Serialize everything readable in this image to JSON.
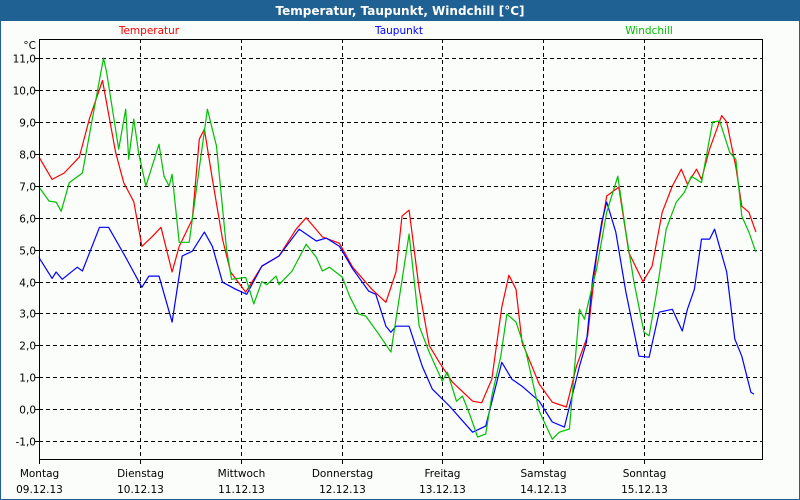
{
  "window": {
    "title": "Temperatur, Taupunkt, Windchill [°C]"
  },
  "chart_data": {
    "type": "line",
    "title": "Temperatur, Taupunkt, Windchill [°C]",
    "ylabel": "°C",
    "xlabel": "",
    "x_unit": "days since Montag 09.12.13 00:00",
    "xlim": [
      0,
      7.17
    ],
    "ylim": [
      -1.56,
      11.6
    ],
    "grid": true,
    "legend_placement": "top",
    "yticks": [
      -1,
      0,
      1,
      2,
      3,
      4,
      5,
      6,
      7,
      8,
      9,
      10,
      11
    ],
    "ytick_labels": [
      "-1,0",
      "0,0",
      "1,0",
      "2,0",
      "3,0",
      "4,0",
      "5,0",
      "6,0",
      "7,0",
      "8,0",
      "9,0",
      "10,0",
      "11,0"
    ],
    "xticks": [
      {
        "day": "Montag",
        "date": "09.12.13",
        "x": 0
      },
      {
        "day": "Dienstag",
        "date": "10.12.13",
        "x": 1
      },
      {
        "day": "Mittwoch",
        "date": "11.12.13",
        "x": 2
      },
      {
        "day": "Donnerstag",
        "date": "12.12.13",
        "x": 3
      },
      {
        "day": "Freitag",
        "date": "13.12.13",
        "x": 4
      },
      {
        "day": "Samstag",
        "date": "14.12.13",
        "x": 5
      },
      {
        "day": "Sonntag",
        "date": "15.12.13",
        "x": 6
      }
    ],
    "series": [
      {
        "name": "Temperatur",
        "color": "#ff0000",
        "points": [
          [
            0,
            7.9
          ],
          [
            0.13,
            7.2
          ],
          [
            0.25,
            7.4
          ],
          [
            0.4,
            7.9
          ],
          [
            0.5,
            9.1
          ],
          [
            0.63,
            10.3
          ],
          [
            0.76,
            8.05
          ],
          [
            0.84,
            7.1
          ],
          [
            0.94,
            6.5
          ],
          [
            1.02,
            5.1
          ],
          [
            1.12,
            5.4
          ],
          [
            1.21,
            5.7
          ],
          [
            1.32,
            4.3
          ],
          [
            1.39,
            5.1
          ],
          [
            1.52,
            5.95
          ],
          [
            1.59,
            8.46
          ],
          [
            1.64,
            8.77
          ],
          [
            1.72,
            7.2
          ],
          [
            1.82,
            5.33
          ],
          [
            1.9,
            4.3
          ],
          [
            2.05,
            3.67
          ],
          [
            2.21,
            4.48
          ],
          [
            2.38,
            4.8
          ],
          [
            2.55,
            5.64
          ],
          [
            2.65,
            6.0
          ],
          [
            2.81,
            5.4
          ],
          [
            2.98,
            5.2
          ],
          [
            3.11,
            4.45
          ],
          [
            3.3,
            3.76
          ],
          [
            3.44,
            3.35
          ],
          [
            3.54,
            4.3
          ],
          [
            3.6,
            6.05
          ],
          [
            3.67,
            6.24
          ],
          [
            3.77,
            3.76
          ],
          [
            3.87,
            2.0
          ],
          [
            3.97,
            1.47
          ],
          [
            4.1,
            0.85
          ],
          [
            4.3,
            0.25
          ],
          [
            4.39,
            0.2
          ],
          [
            4.49,
            0.94
          ],
          [
            4.59,
            3.2
          ],
          [
            4.66,
            4.2
          ],
          [
            4.73,
            3.76
          ],
          [
            4.79,
            2.1
          ],
          [
            4.96,
            0.79
          ],
          [
            5.09,
            0.22
          ],
          [
            5.23,
            0.07
          ],
          [
            5.33,
            1.35
          ],
          [
            5.44,
            2.3
          ],
          [
            5.53,
            4.8
          ],
          [
            5.63,
            6.68
          ],
          [
            5.75,
            6.96
          ],
          [
            5.85,
            4.9
          ],
          [
            5.99,
            4.0
          ],
          [
            6.08,
            4.48
          ],
          [
            6.18,
            6.17
          ],
          [
            6.28,
            6.99
          ],
          [
            6.37,
            7.52
          ],
          [
            6.43,
            7.05
          ],
          [
            6.52,
            7.52
          ],
          [
            6.57,
            7.2
          ],
          [
            6.65,
            8.15
          ],
          [
            6.77,
            9.2
          ],
          [
            6.82,
            9.0
          ],
          [
            6.91,
            7.6
          ],
          [
            6.97,
            6.36
          ],
          [
            7.04,
            6.17
          ],
          [
            7.11,
            5.55
          ]
        ]
      },
      {
        "name": "Taupunkt",
        "color": "#0000ff",
        "points": [
          [
            0,
            4.75
          ],
          [
            0.13,
            4.1
          ],
          [
            0.17,
            4.3
          ],
          [
            0.23,
            4.07
          ],
          [
            0.38,
            4.45
          ],
          [
            0.43,
            4.33
          ],
          [
            0.6,
            5.7
          ],
          [
            0.69,
            5.7
          ],
          [
            0.86,
            4.76
          ],
          [
            1.02,
            3.82
          ],
          [
            1.09,
            4.17
          ],
          [
            1.19,
            4.17
          ],
          [
            1.32,
            2.73
          ],
          [
            1.42,
            4.8
          ],
          [
            1.52,
            4.95
          ],
          [
            1.64,
            5.55
          ],
          [
            1.72,
            5.1
          ],
          [
            1.82,
            3.98
          ],
          [
            1.95,
            3.76
          ],
          [
            2.06,
            3.6
          ],
          [
            2.21,
            4.48
          ],
          [
            2.38,
            4.8
          ],
          [
            2.58,
            5.64
          ],
          [
            2.75,
            5.27
          ],
          [
            2.85,
            5.36
          ],
          [
            2.98,
            5.1
          ],
          [
            3.11,
            4.4
          ],
          [
            3.27,
            3.7
          ],
          [
            3.34,
            3.6
          ],
          [
            3.44,
            2.6
          ],
          [
            3.49,
            2.41
          ],
          [
            3.54,
            2.6
          ],
          [
            3.67,
            2.6
          ],
          [
            3.8,
            1.35
          ],
          [
            3.9,
            0.63
          ],
          [
            4.07,
            0.1
          ],
          [
            4.3,
            -0.72
          ],
          [
            4.43,
            -0.53
          ],
          [
            4.59,
            1.47
          ],
          [
            4.69,
            0.94
          ],
          [
            4.79,
            0.72
          ],
          [
            4.96,
            0.25
          ],
          [
            5.09,
            -0.4
          ],
          [
            5.21,
            -0.56
          ],
          [
            5.36,
            1.35
          ],
          [
            5.43,
            2.1
          ],
          [
            5.49,
            4.07
          ],
          [
            5.58,
            5.86
          ],
          [
            5.63,
            6.49
          ],
          [
            5.72,
            5.55
          ],
          [
            5.82,
            3.67
          ],
          [
            5.95,
            1.66
          ],
          [
            6.05,
            1.63
          ],
          [
            6.15,
            3.04
          ],
          [
            6.28,
            3.13
          ],
          [
            6.38,
            2.45
          ],
          [
            6.43,
            3.13
          ],
          [
            6.5,
            3.76
          ],
          [
            6.57,
            5.33
          ],
          [
            6.65,
            5.33
          ],
          [
            6.7,
            5.64
          ],
          [
            6.82,
            4.3
          ],
          [
            6.9,
            2.2
          ],
          [
            6.97,
            1.66
          ],
          [
            7.06,
            0.53
          ],
          [
            7.09,
            0.47
          ]
        ]
      },
      {
        "name": "Windchill",
        "color": "#00c000",
        "points": [
          [
            0,
            6.96
          ],
          [
            0.1,
            6.52
          ],
          [
            0.17,
            6.49
          ],
          [
            0.22,
            6.2
          ],
          [
            0.3,
            7.1
          ],
          [
            0.43,
            7.4
          ],
          [
            0.64,
            11.0
          ],
          [
            0.67,
            10.56
          ],
          [
            0.79,
            8.15
          ],
          [
            0.86,
            9.4
          ],
          [
            0.89,
            7.83
          ],
          [
            0.94,
            9.09
          ],
          [
            0.99,
            8.0
          ],
          [
            1.06,
            6.99
          ],
          [
            1.19,
            8.3
          ],
          [
            1.24,
            7.3
          ],
          [
            1.29,
            6.99
          ],
          [
            1.32,
            7.36
          ],
          [
            1.39,
            5.23
          ],
          [
            1.49,
            5.23
          ],
          [
            1.57,
            7.1
          ],
          [
            1.67,
            9.4
          ],
          [
            1.76,
            8.24
          ],
          [
            1.86,
            5.0
          ],
          [
            1.91,
            4.07
          ],
          [
            2.05,
            4.13
          ],
          [
            2.13,
            3.3
          ],
          [
            2.21,
            4.0
          ],
          [
            2.26,
            3.9
          ],
          [
            2.35,
            4.17
          ],
          [
            2.38,
            3.9
          ],
          [
            2.51,
            4.33
          ],
          [
            2.65,
            5.17
          ],
          [
            2.75,
            4.76
          ],
          [
            2.81,
            4.33
          ],
          [
            2.88,
            4.45
          ],
          [
            3.01,
            4.13
          ],
          [
            3.08,
            3.54
          ],
          [
            3.17,
            2.98
          ],
          [
            3.24,
            2.92
          ],
          [
            3.37,
            2.35
          ],
          [
            3.49,
            1.79
          ],
          [
            3.54,
            2.82
          ],
          [
            3.67,
            5.49
          ],
          [
            3.77,
            2.6
          ],
          [
            3.87,
            1.79
          ],
          [
            4.0,
            0.88
          ],
          [
            4.05,
            1.16
          ],
          [
            4.14,
            0.25
          ],
          [
            4.2,
            0.41
          ],
          [
            4.27,
            -0.15
          ],
          [
            4.35,
            -0.87
          ],
          [
            4.43,
            -0.78
          ],
          [
            4.49,
            0.41
          ],
          [
            4.58,
            1.66
          ],
          [
            4.64,
            2.98
          ],
          [
            4.73,
            2.73
          ],
          [
            4.83,
            1.79
          ],
          [
            4.96,
            -0.06
          ],
          [
            5.09,
            -0.94
          ],
          [
            5.16,
            -0.72
          ],
          [
            5.26,
            -0.62
          ],
          [
            5.36,
            3.13
          ],
          [
            5.41,
            2.82
          ],
          [
            5.48,
            3.76
          ],
          [
            5.53,
            4.39
          ],
          [
            5.63,
            6.17
          ],
          [
            5.74,
            7.3
          ],
          [
            5.82,
            5.55
          ],
          [
            5.9,
            4.0
          ],
          [
            6.0,
            2.41
          ],
          [
            6.05,
            2.3
          ],
          [
            6.13,
            3.76
          ],
          [
            6.22,
            5.64
          ],
          [
            6.32,
            6.49
          ],
          [
            6.4,
            6.8
          ],
          [
            6.47,
            7.3
          ],
          [
            6.57,
            7.1
          ],
          [
            6.68,
            9.0
          ],
          [
            6.75,
            9.03
          ],
          [
            6.85,
            8.05
          ],
          [
            6.91,
            7.83
          ],
          [
            6.97,
            6.05
          ],
          [
            7.04,
            5.55
          ],
          [
            7.11,
            4.92
          ]
        ]
      }
    ]
  }
}
